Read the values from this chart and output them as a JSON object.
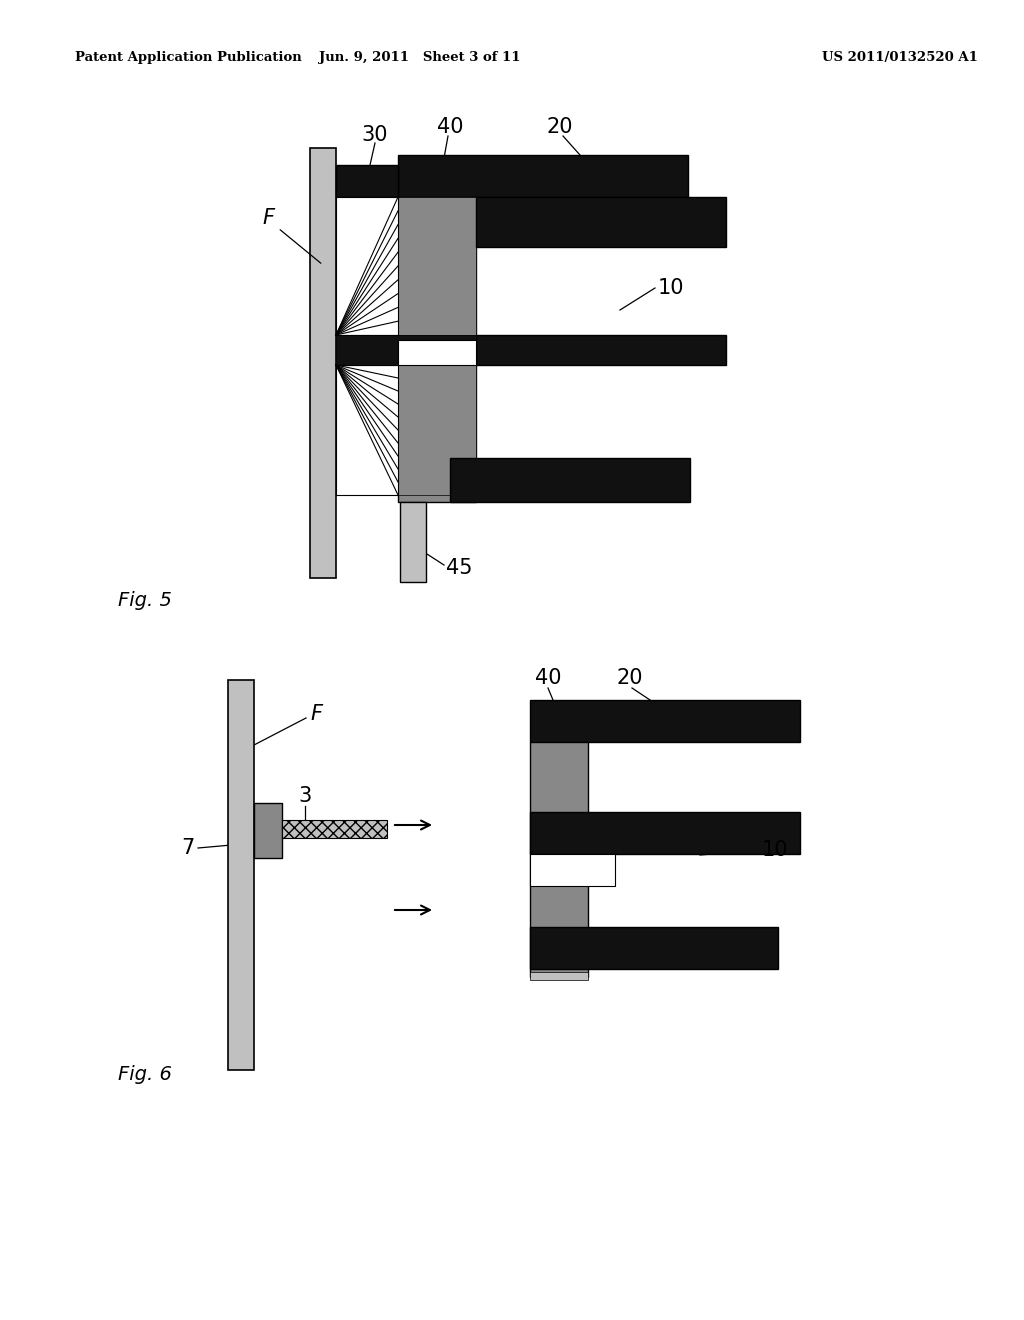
{
  "header_left": "Patent Application Publication",
  "header_mid": "Jun. 9, 2011   Sheet 3 of 11",
  "header_right": "US 2011/0132520 A1",
  "fig5_label": "Fig. 5",
  "fig6_label": "Fig. 6",
  "bg_color": "#ffffff",
  "black": "#111111",
  "med_gray": "#888888",
  "light_gray": "#c0c0c0"
}
